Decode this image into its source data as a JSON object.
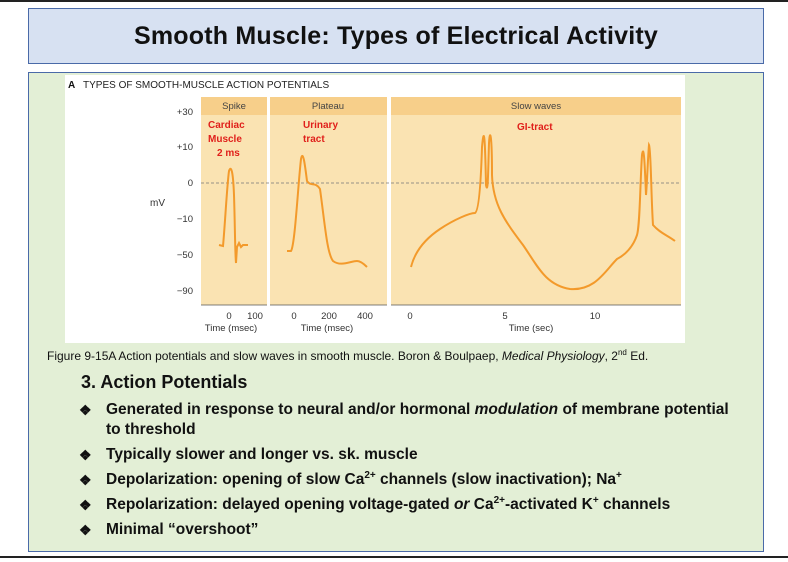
{
  "slide": {
    "title": "Smooth Muscle: Types of Electrical Activity"
  },
  "figure": {
    "panel_label": "A",
    "panel_title": "TYPES OF SMOOTH-MUSCLE ACTION POTENTIALS",
    "panels": [
      {
        "header": "Spike",
        "annotation": [
          "Cardiac",
          "Muscle",
          "2 ms"
        ],
        "x_ticks": [
          "0",
          "100"
        ],
        "x_label": "Time (msec)"
      },
      {
        "header": "Plateau",
        "annotation": [
          "Urinary",
          "tract"
        ],
        "x_ticks": [
          "0",
          "200",
          "400"
        ],
        "x_label": "Time (msec)"
      },
      {
        "header": "Slow waves",
        "annotation": [
          "GI-tract"
        ],
        "x_ticks": [
          "0",
          "5",
          "10"
        ],
        "x_label": "Time (sec)"
      }
    ],
    "y_label": "mV",
    "y_ticks": [
      "+30",
      "+10",
      "0",
      "−10",
      "−50",
      "−90"
    ],
    "colors": {
      "panel_bg": "#fae3b2",
      "panel_bg_upper": "#f9d89a",
      "trace": "#f39a2b",
      "annotation": "#e0201b"
    }
  },
  "caption": {
    "text": "Figure 9-15A Action potentials and slow waves in smooth muscle. Boron & Boulpaep, ",
    "book": "Medical Physiology",
    "edition_num": ", 2",
    "edition_sup": "nd",
    "edition_end": " Ed."
  },
  "section": {
    "heading": "3.  Action Potentials"
  },
  "bullets": {
    "symbol": "❖",
    "b1": {
      "pre": "Generated in response to neural and/or hormonal ",
      "em": "modulation",
      "post": " of membrane potential to threshold"
    },
    "b2": {
      "text": "Typically slower and longer vs. sk. muscle"
    },
    "b3": {
      "pre": "Depolarization: opening of slow Ca",
      "sup1": "2+",
      "mid": " channels (slow inactivation); Na",
      "sup2": "+"
    },
    "b4": {
      "pre": "Repolarization: delayed opening voltage-gated ",
      "em": "or",
      "mid": " Ca",
      "sup1": "2+",
      "mid2": "-activated K",
      "sup2": "+",
      "post": " channels"
    },
    "b5": {
      "text": "Minimal “overshoot”"
    }
  }
}
